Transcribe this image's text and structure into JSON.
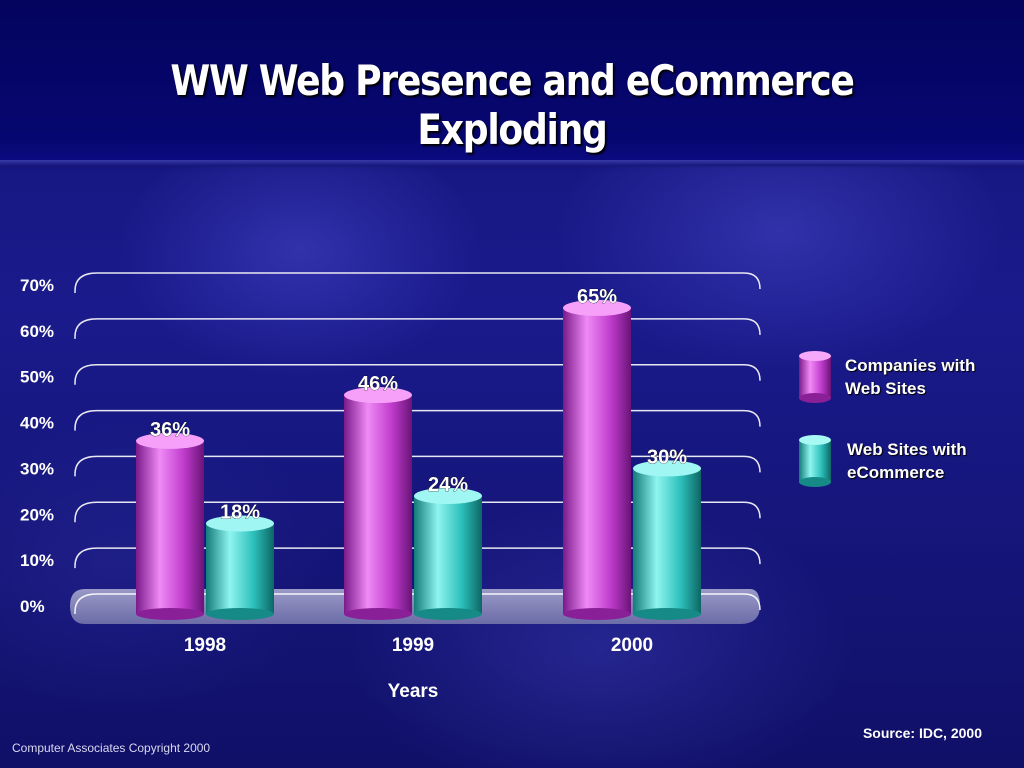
{
  "title": "WW Web Presence and eCommerce Exploding",
  "footer": {
    "copyright": "Computer Associates Copyright 2000",
    "source": "Source: IDC, 2000"
  },
  "colors": {
    "series1": "#e060e8",
    "series2": "#40e0d8",
    "grid": "#ffffff"
  },
  "chart_data": {
    "type": "bar",
    "title": "WW Web Presence and eCommerce Exploding",
    "xlabel": "Years",
    "ylabel": "",
    "categories": [
      "1998",
      "1999",
      "2000"
    ],
    "ylim": [
      0,
      70
    ],
    "yticks": [
      0,
      10,
      20,
      30,
      40,
      50,
      60,
      70
    ],
    "ytick_labels": [
      "0%",
      "10%",
      "20%",
      "30%",
      "40%",
      "50%",
      "60%",
      "70%"
    ],
    "grid": true,
    "legend": "right",
    "series": [
      {
        "name": "Companies with Web Sites",
        "legend_lines": [
          "Companies with",
          "Web Sites"
        ],
        "values": [
          36,
          46,
          65
        ],
        "labels": [
          "36%",
          "46%",
          "65%"
        ],
        "color": "#e060e8"
      },
      {
        "name": "Web Sites with eCommerce",
        "legend_lines": [
          "Web Sites with",
          "eCommerce"
        ],
        "values": [
          18,
          24,
          30
        ],
        "labels": [
          "18%",
          "24%",
          "30%"
        ],
        "color": "#40e0d8"
      }
    ]
  }
}
